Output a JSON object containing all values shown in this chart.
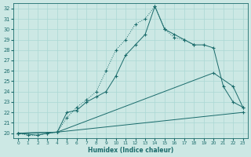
{
  "xlabel": "Humidex (Indice chaleur)",
  "bg_color": "#cce8e4",
  "grid_color": "#aad8d4",
  "line_color": "#1a6b6b",
  "xlim": [
    -0.5,
    23.5
  ],
  "ylim": [
    19.5,
    32.5
  ],
  "yticks": [
    20,
    21,
    22,
    23,
    24,
    25,
    26,
    27,
    28,
    29,
    30,
    31,
    32
  ],
  "xticks": [
    0,
    1,
    2,
    3,
    4,
    5,
    6,
    7,
    8,
    9,
    10,
    11,
    12,
    13,
    14,
    15,
    16,
    17,
    18,
    19,
    20,
    21,
    22,
    23
  ],
  "lines": [
    {
      "x": [
        0,
        1,
        2,
        3,
        4,
        5,
        6,
        7,
        8,
        9,
        10,
        11,
        12,
        13,
        14,
        15,
        16,
        17,
        18
      ],
      "y": [
        20.0,
        19.8,
        19.8,
        20.0,
        20.1,
        21.5,
        22.5,
        23.2,
        24.0,
        26.0,
        28.0,
        29.0,
        30.5,
        31.0,
        32.2,
        30.0,
        29.2,
        29.0,
        28.5
      ],
      "style": "dotted"
    },
    {
      "x": [
        0,
        2,
        3,
        4,
        5,
        6,
        7,
        8,
        9,
        10,
        11,
        12,
        13,
        14,
        15,
        16,
        17,
        18,
        19,
        20,
        21,
        22,
        23
      ],
      "y": [
        20.0,
        19.8,
        20.0,
        20.1,
        22.0,
        22.2,
        23.0,
        23.5,
        24.0,
        25.5,
        27.5,
        28.5,
        29.5,
        32.2,
        30.0,
        29.5,
        29.0,
        28.5,
        28.5,
        28.2,
        24.5,
        23.0,
        22.5
      ],
      "style": "solid"
    },
    {
      "x": [
        0,
        4,
        20,
        22,
        23
      ],
      "y": [
        20.0,
        20.1,
        25.8,
        24.5,
        22.5
      ],
      "style": "solid"
    },
    {
      "x": [
        0,
        4,
        23
      ],
      "y": [
        20.0,
        20.1,
        22.0
      ],
      "style": "solid"
    }
  ]
}
